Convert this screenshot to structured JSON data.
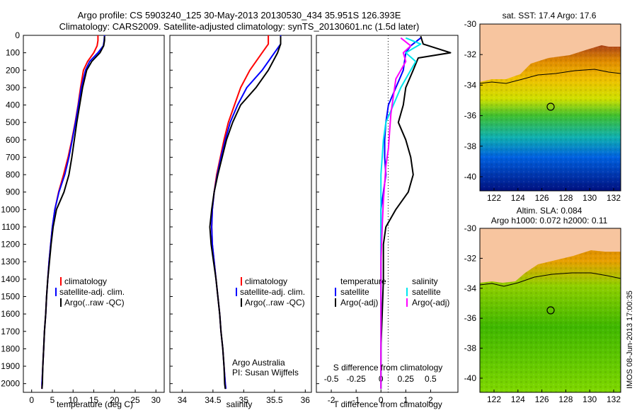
{
  "title_line1": "Argo profile: CS 5903240_125 30-May-2013 20130530_434 35.951S 126.393E",
  "title_line2": "Climatology: CARS2009. Satellite-adjusted climatology: synTS_20130601.nc (1.5d later)",
  "chart_data": [
    {
      "type": "line",
      "name": "temperature-profile",
      "xlabel": "temperature (deg C)",
      "xlim": [
        -2,
        32
      ],
      "xticks": [
        0,
        5,
        10,
        15,
        20,
        25,
        30
      ],
      "ylim": [
        0,
        2050
      ],
      "yticks": [
        0,
        100,
        200,
        300,
        400,
        500,
        600,
        700,
        800,
        900,
        1000,
        1100,
        1200,
        1300,
        1400,
        1500,
        1600,
        1700,
        1800,
        1900,
        2000
      ],
      "legend": [
        "climatology",
        "satellite-adj. clim.",
        "Argo(..raw -QC)"
      ],
      "legend_placement": "lower-right",
      "series": [
        {
          "name": "climatology",
          "color": "#ff0000",
          "points": [
            [
              16.0,
              0
            ],
            [
              16.0,
              30
            ],
            [
              15.8,
              60
            ],
            [
              15.0,
              100
            ],
            [
              13.5,
              150
            ],
            [
              12.5,
              200
            ],
            [
              11.8,
              300
            ],
            [
              11.2,
              400
            ],
            [
              10.5,
              500
            ],
            [
              9.7,
              600
            ],
            [
              8.8,
              700
            ],
            [
              7.7,
              800
            ],
            [
              6.5,
              900
            ],
            [
              5.6,
              1000
            ],
            [
              5.0,
              1100
            ],
            [
              4.6,
              1200
            ],
            [
              4.2,
              1300
            ],
            [
              3.9,
              1400
            ],
            [
              3.6,
              1500
            ],
            [
              3.4,
              1600
            ],
            [
              3.1,
              1700
            ],
            [
              2.9,
              1800
            ],
            [
              2.7,
              1900
            ],
            [
              2.5,
              2000
            ],
            [
              2.5,
              2030
            ]
          ]
        },
        {
          "name": "satellite-adj. clim.",
          "color": "#0000ff",
          "points": [
            [
              17.6,
              0
            ],
            [
              17.5,
              30
            ],
            [
              17.3,
              60
            ],
            [
              16.0,
              100
            ],
            [
              14.0,
              150
            ],
            [
              13.0,
              200
            ],
            [
              12.0,
              300
            ],
            [
              11.3,
              400
            ],
            [
              10.6,
              500
            ],
            [
              9.8,
              600
            ],
            [
              9.0,
              700
            ],
            [
              8.0,
              800
            ],
            [
              6.6,
              900
            ],
            [
              5.6,
              1000
            ],
            [
              5.0,
              1100
            ],
            [
              4.6,
              1200
            ],
            [
              4.2,
              1300
            ],
            [
              3.9,
              1400
            ],
            [
              3.6,
              1500
            ],
            [
              3.4,
              1600
            ],
            [
              3.1,
              1700
            ],
            [
              2.9,
              1800
            ],
            [
              2.7,
              1900
            ],
            [
              2.5,
              2000
            ],
            [
              2.5,
              2030
            ]
          ]
        },
        {
          "name": "Argo(..raw -QC)",
          "color": "#000000",
          "points": [
            [
              17.6,
              5
            ],
            [
              17.6,
              30
            ],
            [
              17.4,
              60
            ],
            [
              16.5,
              100
            ],
            [
              14.5,
              150
            ],
            [
              13.3,
              200
            ],
            [
              12.3,
              300
            ],
            [
              11.6,
              400
            ],
            [
              10.9,
              500
            ],
            [
              10.3,
              600
            ],
            [
              9.7,
              700
            ],
            [
              9.0,
              800
            ],
            [
              7.8,
              900
            ],
            [
              6.0,
              1000
            ],
            [
              5.2,
              1100
            ],
            [
              4.7,
              1200
            ],
            [
              4.3,
              1300
            ],
            [
              3.9,
              1400
            ],
            [
              3.6,
              1500
            ],
            [
              3.4,
              1600
            ],
            [
              3.1,
              1700
            ],
            [
              2.9,
              1800
            ],
            [
              2.7,
              1900
            ],
            [
              2.6,
              2000
            ],
            [
              2.5,
              2030
            ]
          ]
        }
      ]
    },
    {
      "type": "line",
      "name": "salinity-profile",
      "xlabel": "salinity",
      "xlim": [
        33.8,
        36.1
      ],
      "xticks": [
        34,
        34.5,
        35,
        35.5,
        36
      ],
      "ylim": [
        0,
        2050
      ],
      "legend": [
        "climatology",
        "satellite-adj. clim.",
        "Argo(..raw -QC)"
      ],
      "legend_placement": "lower-right",
      "annotation": [
        "Argo Australia",
        "PI: Susan Wijffels"
      ],
      "series": [
        {
          "name": "climatology",
          "color": "#ff0000",
          "points": [
            [
              35.4,
              0
            ],
            [
              35.4,
              50
            ],
            [
              35.3,
              100
            ],
            [
              35.1,
              200
            ],
            [
              34.95,
              300
            ],
            [
              34.85,
              400
            ],
            [
              34.75,
              500
            ],
            [
              34.68,
              600
            ],
            [
              34.62,
              700
            ],
            [
              34.56,
              800
            ],
            [
              34.52,
              900
            ],
            [
              34.49,
              1000
            ],
            [
              34.48,
              1100
            ],
            [
              34.49,
              1200
            ],
            [
              34.52,
              1300
            ],
            [
              34.55,
              1400
            ],
            [
              34.58,
              1500
            ],
            [
              34.61,
              1600
            ],
            [
              34.63,
              1700
            ],
            [
              34.66,
              1800
            ],
            [
              34.68,
              1900
            ],
            [
              34.7,
              2000
            ],
            [
              34.71,
              2030
            ]
          ]
        },
        {
          "name": "satellite-adj. clim.",
          "color": "#0000ff",
          "points": [
            [
              35.6,
              0
            ],
            [
              35.6,
              50
            ],
            [
              35.5,
              100
            ],
            [
              35.3,
              200
            ],
            [
              35.05,
              300
            ],
            [
              34.9,
              400
            ],
            [
              34.78,
              500
            ],
            [
              34.7,
              600
            ],
            [
              34.63,
              700
            ],
            [
              34.57,
              800
            ],
            [
              34.52,
              900
            ],
            [
              34.49,
              1000
            ],
            [
              34.48,
              1100
            ],
            [
              34.49,
              1200
            ],
            [
              34.52,
              1300
            ],
            [
              34.55,
              1400
            ],
            [
              34.58,
              1500
            ],
            [
              34.61,
              1600
            ],
            [
              34.63,
              1700
            ],
            [
              34.66,
              1800
            ],
            [
              34.68,
              1900
            ],
            [
              34.7,
              2000
            ],
            [
              34.71,
              2030
            ]
          ]
        },
        {
          "name": "Argo(..raw -QC)",
          "color": "#000000",
          "points": [
            [
              35.6,
              5
            ],
            [
              35.6,
              50
            ],
            [
              35.55,
              100
            ],
            [
              35.4,
              200
            ],
            [
              35.2,
              300
            ],
            [
              34.95,
              400
            ],
            [
              34.82,
              500
            ],
            [
              34.72,
              600
            ],
            [
              34.65,
              700
            ],
            [
              34.58,
              800
            ],
            [
              34.52,
              900
            ],
            [
              34.48,
              1000
            ],
            [
              34.45,
              1100
            ],
            [
              34.47,
              1200
            ],
            [
              34.51,
              1300
            ],
            [
              34.55,
              1400
            ],
            [
              34.58,
              1500
            ],
            [
              34.61,
              1600
            ],
            [
              34.63,
              1700
            ],
            [
              34.66,
              1800
            ],
            [
              34.68,
              1900
            ],
            [
              34.69,
              2000
            ],
            [
              34.7,
              2030
            ]
          ]
        }
      ]
    },
    {
      "type": "line",
      "name": "difference-profile",
      "xlabel_T": "T difference from climatology",
      "xticks_T": [
        -2,
        -1,
        0,
        1,
        2
      ],
      "xlabel_S": "S difference from climatology",
      "xticks_S": [
        "-0.5",
        "-0.25",
        "0",
        "0.25",
        "0.5"
      ],
      "xlim": [
        -2.6,
        3.1
      ],
      "ylim": [
        0,
        2050
      ],
      "zero_line": "dotted",
      "legend_temperature_title": "temperature",
      "legend_salinity_title": "salinity",
      "legend": [
        "satellite",
        "Argo(-adj)",
        "satellite",
        "Argo(-adj)"
      ],
      "series": [
        {
          "name": "T satellite",
          "color": "#0000ff",
          "points": [
            [
              1.6,
              15
            ],
            [
              1.2,
              60
            ],
            [
              1.0,
              100
            ],
            [
              0.9,
              200
            ],
            [
              0.6,
              300
            ],
            [
              0.3,
              400
            ],
            [
              0.2,
              500
            ],
            [
              0.15,
              600
            ],
            [
              0.15,
              700
            ],
            [
              0.2,
              800
            ],
            [
              0.1,
              900
            ],
            [
              0.0,
              1000
            ],
            [
              0.0,
              1200
            ],
            [
              0.0,
              2030
            ]
          ]
        },
        {
          "name": "T Argo(-adj)",
          "color": "#000000",
          "points": [
            [
              1.6,
              5
            ],
            [
              1.7,
              50
            ],
            [
              2.8,
              100
            ],
            [
              1.5,
              130
            ],
            [
              1.3,
              200
            ],
            [
              1.0,
              300
            ],
            [
              0.9,
              400
            ],
            [
              0.7,
              500
            ],
            [
              1.0,
              600
            ],
            [
              1.2,
              700
            ],
            [
              1.3,
              800
            ],
            [
              1.1,
              900
            ],
            [
              0.6,
              1000
            ],
            [
              0.2,
              1100
            ],
            [
              0.1,
              1200
            ],
            [
              0.1,
              1400
            ],
            [
              0.05,
              1600
            ],
            [
              0.0,
              1800
            ],
            [
              0.0,
              2030
            ]
          ]
        },
        {
          "name": "S satellite",
          "color": "#00e5ee",
          "points": [
            [
              1.0,
              15
            ],
            [
              1.6,
              50
            ],
            [
              1.0,
              100
            ],
            [
              1.4,
              150
            ],
            [
              1.2,
              200
            ],
            [
              0.8,
              300
            ],
            [
              0.5,
              400
            ],
            [
              0.2,
              500
            ],
            [
              0.1,
              600
            ],
            [
              0.05,
              700
            ],
            [
              0.0,
              800
            ],
            [
              0.0,
              900
            ],
            [
              0.0,
              2030
            ]
          ]
        },
        {
          "name": "S Argo(-adj)",
          "color": "#ff00ff",
          "points": [
            [
              0.8,
              15
            ],
            [
              1.2,
              60
            ],
            [
              0.9,
              100
            ],
            [
              1.0,
              150
            ],
            [
              0.6,
              250
            ],
            [
              0.5,
              350
            ],
            [
              0.4,
              450
            ],
            [
              0.35,
              550
            ],
            [
              0.3,
              650
            ],
            [
              0.2,
              750
            ],
            [
              0.15,
              850
            ],
            [
              0.1,
              950
            ],
            [
              0.05,
              1100
            ],
            [
              0.0,
              1300
            ],
            [
              0.0,
              2030
            ]
          ]
        }
      ]
    }
  ],
  "map_top": {
    "title": "sat. SST: 17.4  Argo: 17.6",
    "xticks": [
      "122",
      "124",
      "126",
      "128",
      "130",
      "132"
    ],
    "yticks": [
      "-30",
      "-32",
      "-34",
      "-36",
      "-38",
      "-40"
    ]
  },
  "map_bottom": {
    "title_line1": "Altim. SLA: 0.084",
    "title_line2": "Argo h1000: 0.072 h2000: 0.11",
    "xticks": [
      "122",
      "124",
      "126",
      "128",
      "130",
      "132"
    ],
    "yticks": [
      "-30",
      "-32",
      "-34",
      "-36",
      "-38",
      "-40"
    ]
  },
  "credit": "IMOS 08-Jun-2013 17:00:35"
}
